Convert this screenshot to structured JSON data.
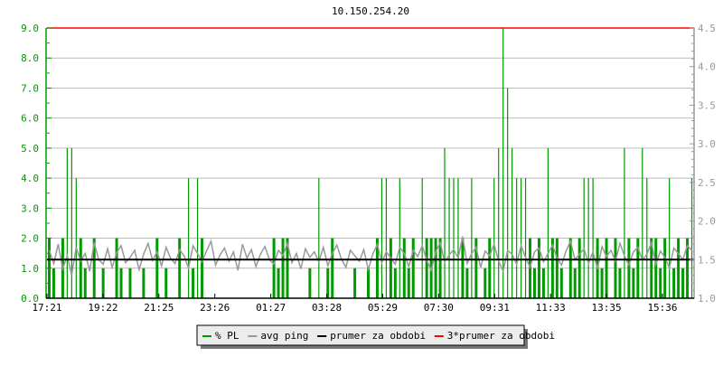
{
  "chart_data": {
    "type": "bar",
    "title": "10.150.254.20",
    "left_axis": {
      "range": [
        0,
        9
      ],
      "ticks": [
        "0.0",
        "1.0",
        "2.0",
        "3.0",
        "4.0",
        "5.0",
        "6.0",
        "7.0",
        "8.0",
        "9.0"
      ],
      "color": "#009900"
    },
    "right_axis": {
      "range": [
        1.0,
        4.5
      ],
      "ticks": [
        "1.0",
        "1.5",
        "2.0",
        "2.5",
        "3.0",
        "3.5",
        "4.0",
        "4.5"
      ],
      "color": "#999999"
    },
    "x_ticks": [
      "17:21",
      "19:22",
      "21:25",
      "23:26",
      "01:27",
      "03:28",
      "05:29",
      "07:30",
      "09:31",
      "11:33",
      "13:35",
      "15:36"
    ],
    "grid": true,
    "legend_placement": "bottom",
    "series": [
      {
        "name": "% PL",
        "axis": "left",
        "style": "bars",
        "color": "#009900",
        "values": [
          2,
          1,
          0,
          2,
          5,
          5,
          4,
          2,
          1,
          0,
          2,
          0,
          1,
          0,
          0,
          2,
          1,
          0,
          1,
          0,
          0,
          1,
          0,
          0,
          2,
          0,
          1,
          0,
          0,
          2,
          0,
          4,
          1,
          4,
          2,
          0,
          0,
          0,
          0,
          0,
          0,
          0,
          0,
          0,
          0,
          0,
          0,
          0,
          0,
          0,
          2,
          1,
          2,
          2,
          0,
          0,
          0,
          0,
          1,
          0,
          4,
          0,
          1,
          2,
          0,
          0,
          0,
          0,
          1,
          0,
          0,
          1,
          0,
          2,
          4,
          4,
          2,
          1,
          4,
          2,
          1,
          2,
          0,
          4,
          2,
          2,
          2,
          2,
          5,
          4,
          4,
          4,
          2,
          1,
          4,
          2,
          0,
          1,
          2,
          4,
          5,
          9,
          7,
          5,
          4,
          4,
          4,
          2,
          1,
          2,
          1,
          5,
          2,
          2,
          1,
          0,
          2,
          1,
          2,
          4,
          4,
          4,
          2,
          1,
          2,
          0,
          2,
          1,
          5,
          2,
          1,
          2,
          5,
          4,
          2,
          2,
          1,
          2,
          4,
          1,
          2,
          1,
          2,
          4
        ]
      },
      {
        "name": "avg ping",
        "axis": "right",
        "style": "line",
        "color": "#999999",
        "values": [
          1.62,
          1.45,
          1.7,
          1.38,
          1.55,
          1.3,
          1.66,
          1.48,
          1.58,
          1.35,
          1.72,
          1.5,
          1.44,
          1.64,
          1.4,
          1.59,
          1.68,
          1.46,
          1.53,
          1.62,
          1.37,
          1.57,
          1.71,
          1.49,
          1.6,
          1.42,
          1.66,
          1.52,
          1.45,
          1.63,
          1.55,
          1.39,
          1.68,
          1.58,
          1.47,
          1.61,
          1.74,
          1.43,
          1.56,
          1.65,
          1.48,
          1.6,
          1.36,
          1.7,
          1.52,
          1.63,
          1.41,
          1.57,
          1.67,
          1.5,
          1.44,
          1.62,
          1.55,
          1.71,
          1.46,
          1.58,
          1.38,
          1.64,
          1.53,
          1.6,
          1.47,
          1.66,
          1.42,
          1.58,
          1.69,
          1.51,
          1.4,
          1.62,
          1.55,
          1.48,
          1.63,
          1.37,
          1.57,
          1.7,
          1.46,
          1.6,
          1.52,
          1.44,
          1.66,
          1.58,
          1.41,
          1.62,
          1.54,
          1.68,
          1.49,
          1.36,
          1.6,
          1.72,
          1.47,
          1.56,
          1.63,
          1.52,
          1.8,
          1.45,
          1.58,
          1.66,
          1.4,
          1.61,
          1.55,
          1.7,
          1.48,
          1.35,
          1.62,
          1.57,
          1.44,
          1.68,
          1.53,
          1.4,
          1.6,
          1.65,
          1.47,
          1.58,
          1.69,
          1.52,
          1.43,
          1.61,
          1.74,
          1.5,
          1.57,
          1.64,
          1.45,
          1.6,
          1.38,
          1.67,
          1.54,
          1.62,
          1.48,
          1.71,
          1.55,
          1.43,
          1.6,
          1.66,
          1.49,
          1.57,
          1.72,
          1.44,
          1.61,
          1.53,
          1.39,
          1.65,
          1.58,
          1.5,
          1.68,
          1.62
        ]
      },
      {
        "name": "prumer za obdobi",
        "axis": "right",
        "style": "hline",
        "color": "#000000",
        "value": 1.5
      },
      {
        "name": "3*prumer za obdobi",
        "axis": "right",
        "style": "hline",
        "color": "#ff0000",
        "value": 4.5
      }
    ]
  }
}
